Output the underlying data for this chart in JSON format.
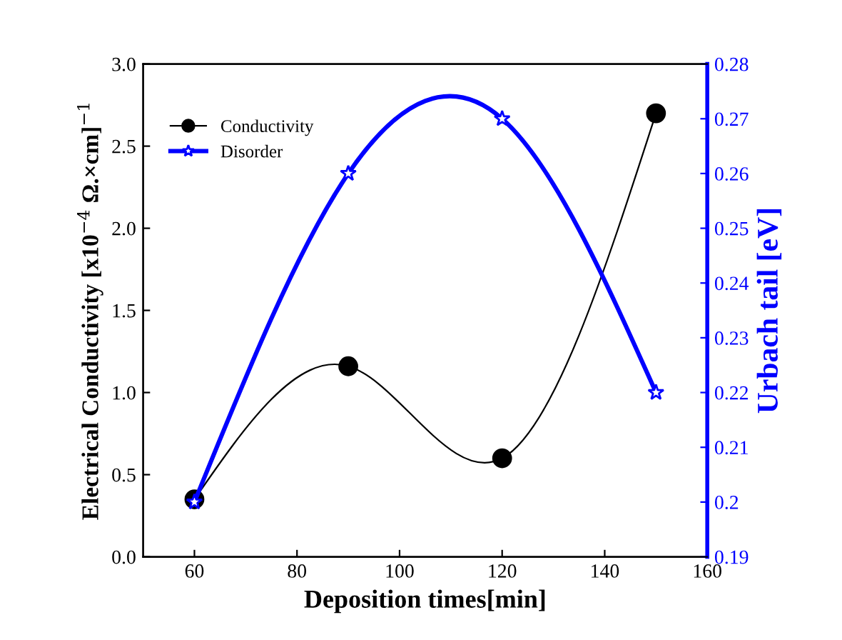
{
  "chart_data": {
    "type": "line",
    "xlabel": "Deposition times[min]",
    "ylabel": "Electrical Conductivity [x10$^{−4}$ Ω.×cm]$^{−1}$",
    "y2label": "Urbach tail [eV]",
    "x": [
      60,
      90,
      120,
      150
    ],
    "series": [
      {
        "name": "Conductivity",
        "color": "#000000",
        "marker": "circle",
        "values": [
          0.35,
          1.16,
          0.6,
          2.7
        ]
      },
      {
        "name": "Disorder",
        "color": "#0000ff",
        "marker": "star",
        "axis": "y2",
        "values": [
          0.2,
          0.26,
          0.27,
          0.22
        ]
      }
    ],
    "xlim": [
      50,
      160
    ],
    "xticks": [
      60,
      80,
      100,
      120,
      140,
      160
    ],
    "ylim": [
      0,
      3.0
    ],
    "yticks": [
      {
        "value": 0,
        "label": "0.0"
      },
      {
        "value": 0.5,
        "label": "0.5"
      },
      {
        "value": 1.0,
        "label": "1.0"
      },
      {
        "value": 1.5,
        "label": "1.5"
      },
      {
        "value": 2.0,
        "label": "2.0"
      },
      {
        "value": 2.5,
        "label": "2.5"
      },
      {
        "value": 3.0,
        "label": "3.0"
      }
    ],
    "y2lim": [
      0.19,
      0.28
    ],
    "y2ticks": [
      0.19,
      0.2,
      0.21,
      0.22,
      0.23,
      0.24,
      0.25,
      0.26,
      0.27,
      0.28
    ],
    "legend": "top left",
    "grid": false
  }
}
